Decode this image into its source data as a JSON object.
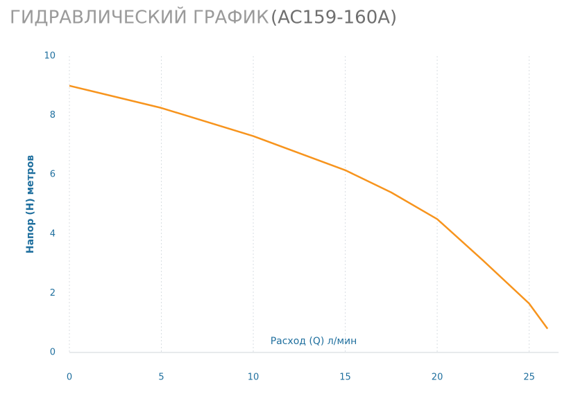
{
  "chart_data": {
    "type": "line",
    "title": "ГИДРАВЛИЧЕСКИЙ ГРАФИК",
    "subtitle": "(AC159-160A)",
    "x_label": "Расход (Q) л/мин",
    "y_label": "Напор (Н) метров",
    "x": [
      0,
      5,
      10,
      15,
      17.5,
      20,
      22.5,
      25,
      26
    ],
    "series": [
      {
        "color": "#f7941d",
        "values": [
          9,
          8.25,
          7.3,
          6.15,
          5.4,
          4.5,
          3.1,
          1.65,
          0.8
        ]
      }
    ],
    "xlim": [
      0,
      26.6
    ],
    "ylim": [
      0,
      10
    ],
    "xticks": [
      0,
      5,
      10,
      15,
      20,
      25
    ],
    "yticks": [
      0,
      2,
      4,
      6,
      8,
      10
    ],
    "grid": true
  }
}
